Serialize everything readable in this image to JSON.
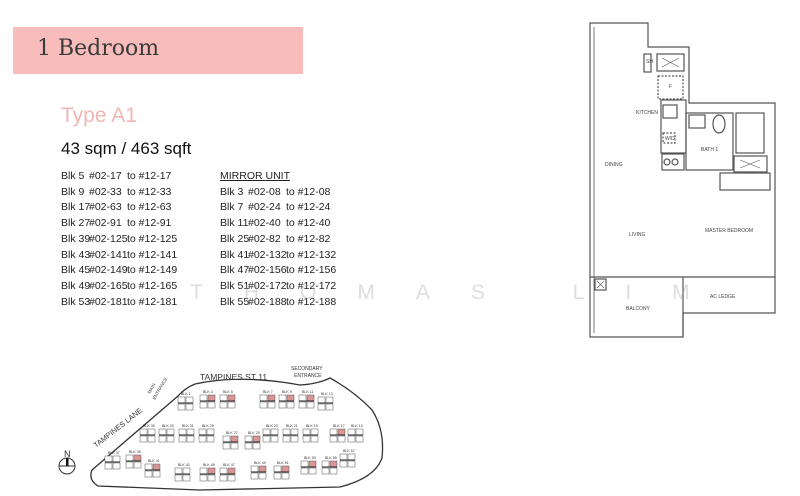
{
  "header": {
    "title": "1 Bedroom",
    "color": "#f8bdbb"
  },
  "unit": {
    "type": "Type A1",
    "area": "43 sqm / 463 sqft",
    "type_color": "#f0b6b4"
  },
  "units": [
    {
      "blk": "Blk 5",
      "from": "#02-17",
      "to": "to #12-17"
    },
    {
      "blk": "Blk 9",
      "from": "#02-33",
      "to": "to #12-33"
    },
    {
      "blk": "Blk 17",
      "from": "#02-63",
      "to": "to #12-63"
    },
    {
      "blk": "Blk 27",
      "from": "#02-91",
      "to": "to #12-91"
    },
    {
      "blk": "Blk 39",
      "from": "#02-125",
      "to": "to #12-125"
    },
    {
      "blk": "Blk 43",
      "from": "#02-141",
      "to": "to #12-141"
    },
    {
      "blk": "Blk 45",
      "from": "#02-149",
      "to": "to #12-149"
    },
    {
      "blk": "Blk 49",
      "from": "#02-165",
      "to": "to #12-165"
    },
    {
      "blk": "Blk 53",
      "from": "#02-181",
      "to": "to #12-181"
    }
  ],
  "mirror": {
    "heading": "MIRROR UNIT",
    "units": [
      {
        "blk": "Blk 3",
        "from": "#02-08",
        "to": "to #12-08"
      },
      {
        "blk": "Blk 7",
        "from": "#02-24",
        "to": "to #12-24"
      },
      {
        "blk": "Blk 11",
        "from": "#02-40",
        "to": "to #12-40"
      },
      {
        "blk": "Blk 25",
        "from": "#02-82",
        "to": "to #12-82"
      },
      {
        "blk": "Blk 41",
        "from": "#02-132",
        "to": "to #12-132"
      },
      {
        "blk": "Blk 47",
        "from": "#02-156",
        "to": "to #12-156"
      },
      {
        "blk": "Blk 51",
        "from": "#02-172",
        "to": "to #12-172"
      },
      {
        "blk": "Blk 55",
        "from": "#02-188",
        "to": "to #12-188"
      }
    ]
  },
  "watermark": "THOMAS LIM",
  "floorplan": {
    "rooms": {
      "sh": "SH",
      "fridge": "F",
      "kitchen": "KITCHEN",
      "wd": "W/D",
      "dining": "DINING",
      "bath": "BATH 1",
      "living": "LIVING",
      "master": "MASTER BEDROOM",
      "balcony": "BALCONY",
      "ac_ledge": "AC LEDGE"
    }
  },
  "site": {
    "road_north": "TAMPINES ST 11",
    "road_west": "TAMPINES LANE",
    "secondary_1": "SECONDARY",
    "secondary_2": "ENTRANCE",
    "main_1": "MAIN",
    "main_2": "ENTRANCE",
    "north": "N",
    "blocks": [
      "BLK 1",
      "BLK 3",
      "BLK 5",
      "BLK 7",
      "BLK 9",
      "BLK 11",
      "BLK 13",
      "BLK 35",
      "BLK 33",
      "BLK 31",
      "BLK 29",
      "BLK 27",
      "BLK 25",
      "BLK 23",
      "BLK 21",
      "BLK 19",
      "BLK 17",
      "BLK 15",
      "BLK 37",
      "BLK 39",
      "BLK 41",
      "BLK 43",
      "BLK 45",
      "BLK 47",
      "BLK 49",
      "BLK 51",
      "BLK 53",
      "BLK 55",
      "BLK 57"
    ],
    "highlight_color": "#c0504d"
  }
}
